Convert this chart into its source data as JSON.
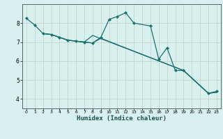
{
  "xlabel": "Humidex (Indice chaleur)",
  "bg_color": "#d8f0ee",
  "grid_color": "#c8d8d0",
  "line_color": "#1a7070",
  "xlim": [
    -0.5,
    23.5
  ],
  "ylim": [
    3.5,
    9.0
  ],
  "yticks": [
    4,
    5,
    6,
    7,
    8
  ],
  "xticks": [
    0,
    1,
    2,
    3,
    4,
    5,
    6,
    7,
    8,
    9,
    10,
    11,
    12,
    13,
    14,
    15,
    16,
    17,
    18,
    19,
    20,
    21,
    22,
    23
  ],
  "line1_x": [
    0,
    1,
    2,
    3,
    4,
    5,
    6,
    7,
    8,
    9,
    10,
    11,
    12,
    13,
    15,
    16,
    17,
    18,
    19,
    22,
    23
  ],
  "line1_y": [
    8.25,
    7.9,
    7.45,
    7.4,
    7.25,
    7.1,
    7.05,
    7.0,
    6.95,
    7.25,
    8.2,
    8.35,
    8.55,
    8.0,
    7.85,
    6.1,
    6.7,
    5.5,
    5.5,
    4.3,
    4.4
  ],
  "line2_x": [
    2,
    3,
    4,
    5,
    6,
    7,
    8,
    9,
    19,
    22,
    23
  ],
  "line2_y": [
    7.45,
    7.4,
    7.25,
    7.1,
    7.05,
    7.0,
    6.95,
    7.2,
    5.5,
    4.3,
    4.35
  ],
  "line3_x": [
    2,
    3,
    4,
    5,
    6,
    7,
    8,
    19,
    22,
    23
  ],
  "line3_y": [
    7.45,
    7.4,
    7.25,
    7.1,
    7.05,
    7.0,
    7.35,
    5.5,
    4.3,
    4.35
  ]
}
